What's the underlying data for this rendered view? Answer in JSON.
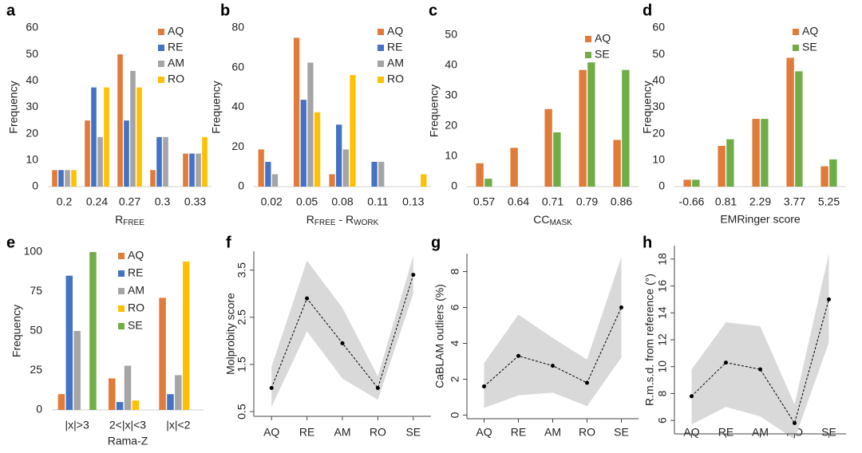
{
  "chart_data": [
    {
      "type": "bar",
      "panel": "a",
      "ylabel": "Frequency",
      "xlabel": [
        "R",
        "FREE"
      ],
      "categories": [
        "0.2",
        "0.24",
        "0.27",
        "0.3",
        "0.33"
      ],
      "series": [
        {
          "name": "AQ",
          "color": "#e07b39",
          "values": [
            6.25,
            25,
            50,
            6.25,
            12.5
          ]
        },
        {
          "name": "RE",
          "color": "#4472c4",
          "values": [
            6.25,
            37.5,
            25,
            18.75,
            12.5
          ]
        },
        {
          "name": "AM",
          "color": "#a5a5a5",
          "values": [
            6.25,
            18.75,
            43.75,
            18.75,
            12.5
          ]
        },
        {
          "name": "RO",
          "color": "#ffc000",
          "values": [
            6.25,
            37.5,
            37.5,
            0,
            18.75
          ]
        }
      ],
      "ylim": [
        0,
        60
      ],
      "yticks": [
        0,
        10,
        20,
        30,
        40,
        50,
        60
      ],
      "legend": "upper right"
    },
    {
      "type": "bar",
      "panel": "b",
      "ylabel": "Frequency",
      "xlabel": [
        "R",
        "FREE",
        " - R",
        "WORK"
      ],
      "categories": [
        "0.02",
        "0.05",
        "0.08",
        "0.11",
        "0.13"
      ],
      "series": [
        {
          "name": "AQ",
          "color": "#e07b39",
          "values": [
            18.75,
            75,
            6.25,
            0,
            0
          ]
        },
        {
          "name": "RE",
          "color": "#4472c4",
          "values": [
            12.5,
            43.75,
            31.25,
            12.5,
            0
          ]
        },
        {
          "name": "AM",
          "color": "#a5a5a5",
          "values": [
            6.25,
            62.5,
            18.75,
            12.5,
            0
          ]
        },
        {
          "name": "RO",
          "color": "#ffc000",
          "values": [
            0,
            37.5,
            56.25,
            0,
            6.25
          ]
        }
      ],
      "ylim": [
        0,
        80
      ],
      "yticks": [
        0,
        20,
        40,
        60,
        80
      ],
      "legend": "upper right"
    },
    {
      "type": "bar",
      "panel": "c",
      "ylabel": "Frequency",
      "xlabel": [
        "CC",
        "MASK"
      ],
      "categories": [
        "0.57",
        "0.64",
        "0.71",
        "0.79",
        "0.86"
      ],
      "series": [
        {
          "name": "AQ",
          "color": "#e07b39",
          "values": [
            7.7,
            12.8,
            25.6,
            38.5,
            15.4
          ]
        },
        {
          "name": "SE",
          "color": "#70ad47",
          "values": [
            2.6,
            0,
            17.9,
            41,
            38.5
          ]
        }
      ],
      "ylim": [
        0,
        50
      ],
      "yticks": [
        0,
        10,
        20,
        30,
        40,
        50
      ],
      "legend": "upper right"
    },
    {
      "type": "bar",
      "panel": "d",
      "ylabel": "Frequency",
      "xlabel": "EMRinger score",
      "categories": [
        "-0.66",
        "0.81",
        "2.29",
        "3.77",
        "5.25"
      ],
      "series": [
        {
          "name": "AQ",
          "color": "#e07b39",
          "values": [
            2.6,
            15.4,
            25.6,
            48.7,
            7.7
          ]
        },
        {
          "name": "SE",
          "color": "#70ad47",
          "values": [
            2.6,
            17.9,
            25.6,
            43.6,
            10.3
          ]
        }
      ],
      "ylim": [
        0,
        60
      ],
      "yticks": [
        0,
        10,
        20,
        30,
        40,
        50,
        60
      ],
      "legend": "upper right"
    },
    {
      "type": "bar",
      "panel": "e",
      "ylabel": "Frequency",
      "xlabel": "Rama-Z",
      "categories": [
        "|x|>3",
        "2<|x|<3",
        "|x|<2"
      ],
      "series": [
        {
          "name": "AQ",
          "color": "#e07b39",
          "values": [
            10,
            20,
            71
          ]
        },
        {
          "name": "RE",
          "color": "#4472c4",
          "values": [
            85,
            5,
            10
          ]
        },
        {
          "name": "AM",
          "color": "#a5a5a5",
          "values": [
            50,
            28,
            22
          ]
        },
        {
          "name": "RO",
          "color": "#ffc000",
          "values": [
            0,
            6,
            94
          ]
        },
        {
          "name": "SE",
          "color": "#70ad47",
          "values": [
            100,
            0,
            0
          ]
        }
      ],
      "ylim": [
        0,
        100
      ],
      "yticks": [
        0,
        25,
        50,
        75,
        100
      ],
      "legend": "upper center"
    },
    {
      "type": "line",
      "panel": "f",
      "ylabel": "Molprobity score",
      "categories": [
        "AQ",
        "RE",
        "AM",
        "RO",
        "SE"
      ],
      "values": [
        1.0,
        2.9,
        1.95,
        1.0,
        3.4
      ],
      "lower": [
        0.6,
        2.2,
        1.2,
        0.75,
        3.0
      ],
      "upper": [
        1.45,
        3.7,
        2.7,
        1.25,
        3.8
      ],
      "color": "#000000",
      "band_color": "#d9d9d9",
      "ylim": [
        0.4,
        3.9
      ],
      "yticks": [
        0.5,
        1.5,
        2.5,
        3.5
      ]
    },
    {
      "type": "line",
      "panel": "g",
      "ylabel": "CaBLAM outliers (%)",
      "categories": [
        "AQ",
        "RE",
        "AM",
        "RO",
        "SE"
      ],
      "values": [
        1.6,
        3.3,
        2.75,
        1.8,
        6.0
      ],
      "lower": [
        0.4,
        1.1,
        1.25,
        0.5,
        3.2
      ],
      "upper": [
        2.9,
        5.6,
        4.3,
        3.1,
        8.8
      ],
      "color": "#000000",
      "band_color": "#d9d9d9",
      "ylim": [
        -0.2,
        9
      ],
      "yticks": [
        0,
        2,
        4,
        6,
        8
      ]
    },
    {
      "type": "line",
      "panel": "h",
      "ylabel": "R.m.s.d. from reference (°)",
      "categories": [
        "AQ",
        "RE",
        "AM",
        "RO",
        "SE"
      ],
      "values": [
        7.8,
        10.3,
        9.8,
        5.8,
        15.0
      ],
      "lower": [
        5.7,
        7.0,
        6.3,
        4.6,
        11.8
      ],
      "upper": [
        9.8,
        13.3,
        13.0,
        7.2,
        18.4
      ],
      "color": "#000000",
      "band_color": "#d9d9d9",
      "ylim": [
        5,
        19
      ],
      "yticks": [
        6,
        8,
        10,
        12,
        14,
        16,
        18
      ]
    }
  ]
}
